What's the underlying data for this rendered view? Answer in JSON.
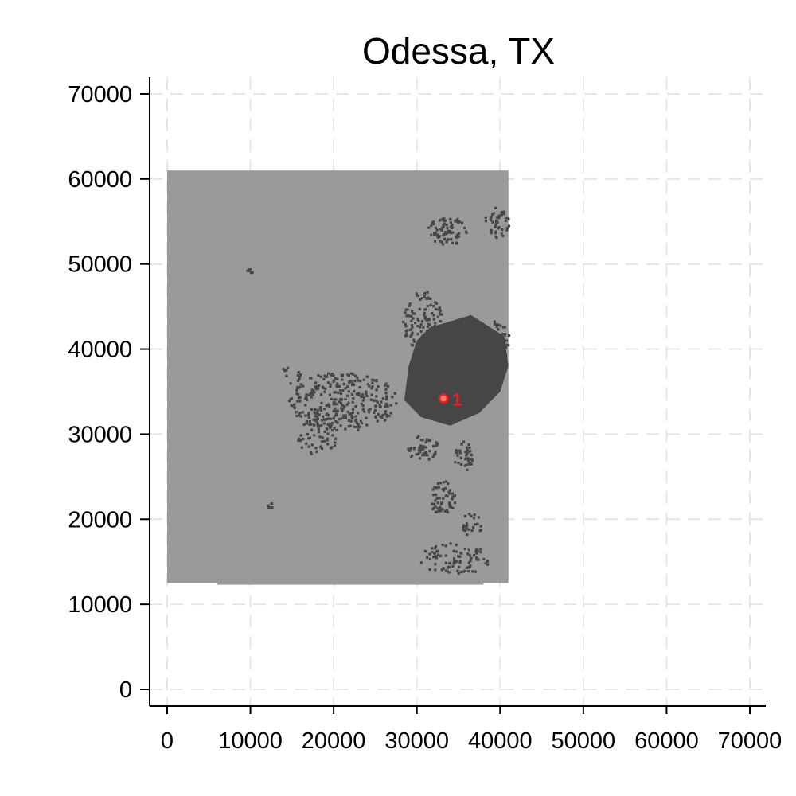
{
  "chart_data": {
    "type": "scatter",
    "title": "Odessa, TX",
    "xlabel": "",
    "ylabel": "",
    "xlim": [
      -2000,
      72000
    ],
    "ylim": [
      -2000,
      72000
    ],
    "x_ticks": [
      0,
      10000,
      20000,
      30000,
      40000,
      50000,
      60000,
      70000
    ],
    "y_ticks": [
      0,
      10000,
      20000,
      30000,
      40000,
      50000,
      60000,
      70000
    ],
    "grid": true,
    "colors": {
      "study_area": "#9a9a9a",
      "developed": "#464646",
      "marker": "#ff1a1a",
      "grid": "#e6e6e6",
      "axis": "#000000"
    },
    "study_area": {
      "x_min": 0,
      "x_max": 41000,
      "y_min": 12500,
      "y_max": 61000,
      "notch_x": [
        6000,
        38000
      ],
      "notch_y_min": 12300
    },
    "developed_core": [
      [
        31500,
        42500
      ],
      [
        36500,
        44000
      ],
      [
        40500,
        41500
      ],
      [
        41000,
        38000
      ],
      [
        40000,
        35000
      ],
      [
        37500,
        32500
      ],
      [
        34000,
        31000
      ],
      [
        30500,
        32000
      ],
      [
        28500,
        34000
      ],
      [
        29000,
        38000
      ],
      [
        30000,
        41000
      ]
    ],
    "developed_clusters": [
      {
        "x": 21000,
        "y": 34000,
        "rx": 6500,
        "ry": 3500,
        "n": 320
      },
      {
        "x": 18000,
        "y": 30000,
        "rx": 2500,
        "ry": 2500,
        "n": 50
      },
      {
        "x": 30500,
        "y": 43500,
        "rx": 2500,
        "ry": 3500,
        "n": 110
      },
      {
        "x": 33000,
        "y": 22500,
        "rx": 1500,
        "ry": 2200,
        "n": 60
      },
      {
        "x": 35500,
        "y": 27500,
        "rx": 1200,
        "ry": 1800,
        "n": 40
      },
      {
        "x": 30500,
        "y": 28500,
        "rx": 2000,
        "ry": 1500,
        "n": 50
      },
      {
        "x": 34500,
        "y": 15500,
        "rx": 4500,
        "ry": 1800,
        "n": 90
      },
      {
        "x": 33500,
        "y": 54000,
        "rx": 2500,
        "ry": 1600,
        "n": 80
      },
      {
        "x": 39500,
        "y": 55000,
        "rx": 1500,
        "ry": 1800,
        "n": 40
      },
      {
        "x": 39500,
        "y": 41000,
        "rx": 1500,
        "ry": 2500,
        "n": 50
      },
      {
        "x": 36500,
        "y": 19500,
        "rx": 1200,
        "ry": 1500,
        "n": 25
      },
      {
        "x": 12300,
        "y": 21800,
        "rx": 400,
        "ry": 400,
        "n": 6
      },
      {
        "x": 9800,
        "y": 49300,
        "rx": 400,
        "ry": 300,
        "n": 6
      },
      {
        "x": 14500,
        "y": 37000,
        "rx": 1500,
        "ry": 1000,
        "n": 12
      }
    ],
    "marker": {
      "x": 33200,
      "y": 34200,
      "label": "1"
    }
  }
}
